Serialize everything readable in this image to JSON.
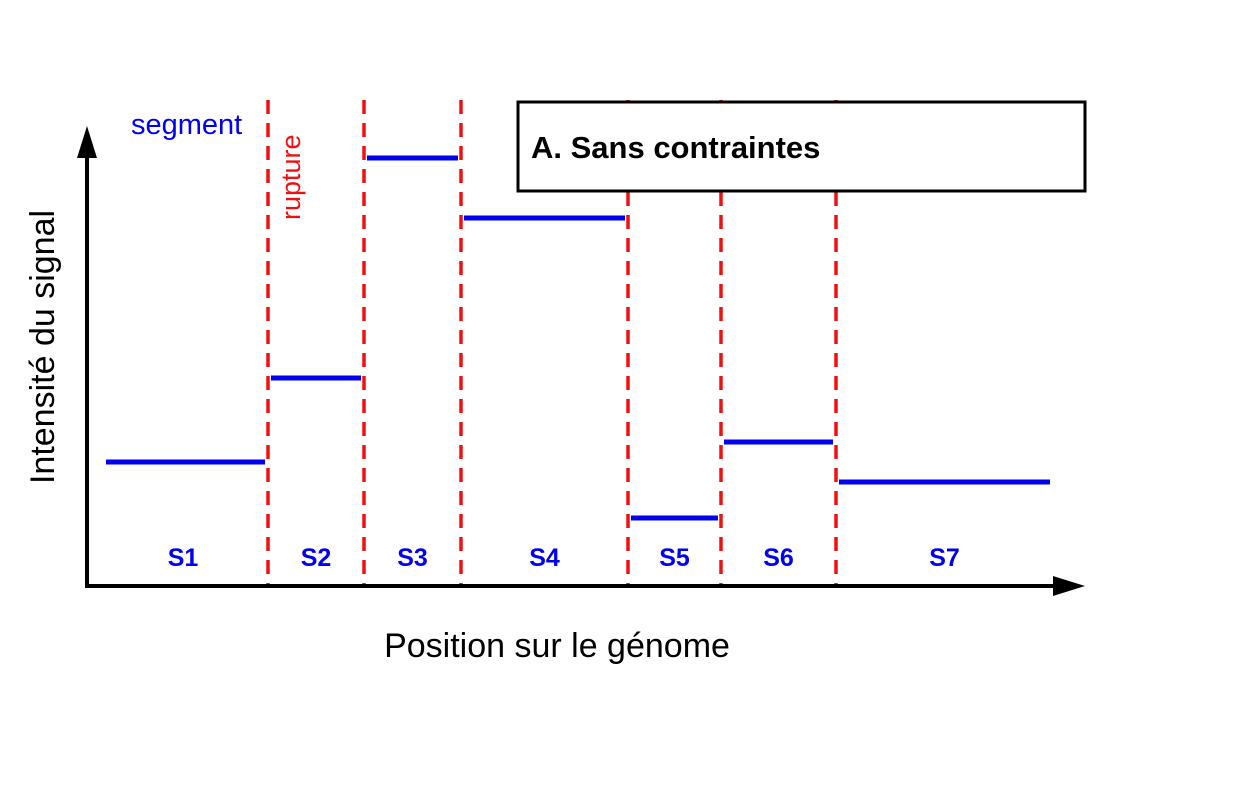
{
  "title": "A. Sans contraintes",
  "ylabel": "Intensité du signal",
  "xlabel": "Position sur le génome",
  "legend": {
    "segment": "segment",
    "rupture": "rupture"
  },
  "colors": {
    "segment": "#0000ee",
    "rupture": "#ee1111",
    "axis": "#000000"
  },
  "chart_data": {
    "type": "line",
    "breakpoints": [
      1,
      2,
      3,
      4,
      5,
      6
    ],
    "segments": [
      {
        "name": "S1",
        "start": 0,
        "end": 1,
        "level": 1.55
      },
      {
        "name": "S2",
        "start": 1,
        "end": 2,
        "level": 2.6
      },
      {
        "name": "S3",
        "start": 2,
        "end": 3,
        "level": 5.35
      },
      {
        "name": "S4",
        "start": 3,
        "end": 4,
        "level": 4.6
      },
      {
        "name": "S5",
        "start": 4,
        "end": 5,
        "level": 0.85
      },
      {
        "name": "S6",
        "start": 5,
        "end": 6,
        "level": 1.8
      },
      {
        "name": "S7",
        "start": 6,
        "end": 7,
        "level": 1.3
      }
    ]
  }
}
